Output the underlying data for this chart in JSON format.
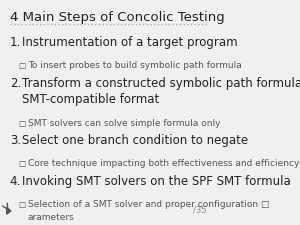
{
  "title": "4 Main Steps of Concolic Testing",
  "background_color": "#f0f0f0",
  "title_color": "#222222",
  "title_fontsize": 9.5,
  "title_underline": true,
  "items": [
    {
      "number": "1.",
      "text": "Instrumentation of a target program",
      "level": 0,
      "fontsize": 8.5,
      "bold": false,
      "color": "#222222"
    },
    {
      "number": "□",
      "text": "To insert probes to build symbolic path formula",
      "level": 1,
      "fontsize": 6.5,
      "bold": false,
      "color": "#555555"
    },
    {
      "number": "2.",
      "text": "Transform a constructed symbolic path formula to\nSMT-compatible format",
      "level": 0,
      "fontsize": 8.5,
      "bold": false,
      "color": "#222222"
    },
    {
      "number": "□",
      "text": "SMT solvers can solve simple formula only",
      "level": 1,
      "fontsize": 6.5,
      "bold": false,
      "color": "#555555"
    },
    {
      "number": "3.",
      "text": "Select one branch condition to negate",
      "level": 0,
      "fontsize": 8.5,
      "bold": false,
      "color": "#222222"
    },
    {
      "number": "□",
      "text": "Core technique impacting both effectiveness and efficiency",
      "level": 1,
      "fontsize": 6.5,
      "bold": false,
      "color": "#555555"
    },
    {
      "number": "4.",
      "text": "Invoking SMT solvers on the SPF SMT formula",
      "level": 0,
      "fontsize": 8.5,
      "bold": false,
      "color": "#222222"
    },
    {
      "number": "□",
      "text": "Selection of a SMT solver and proper configuration □\narameters",
      "level": 1,
      "fontsize": 6.5,
      "bold": false,
      "color": "#555555"
    }
  ],
  "footer_text": "/35",
  "footer_fontsize": 6,
  "footer_color": "#888888",
  "arrow_color": "#555555",
  "dotted_line_color": "#aaaaaa"
}
